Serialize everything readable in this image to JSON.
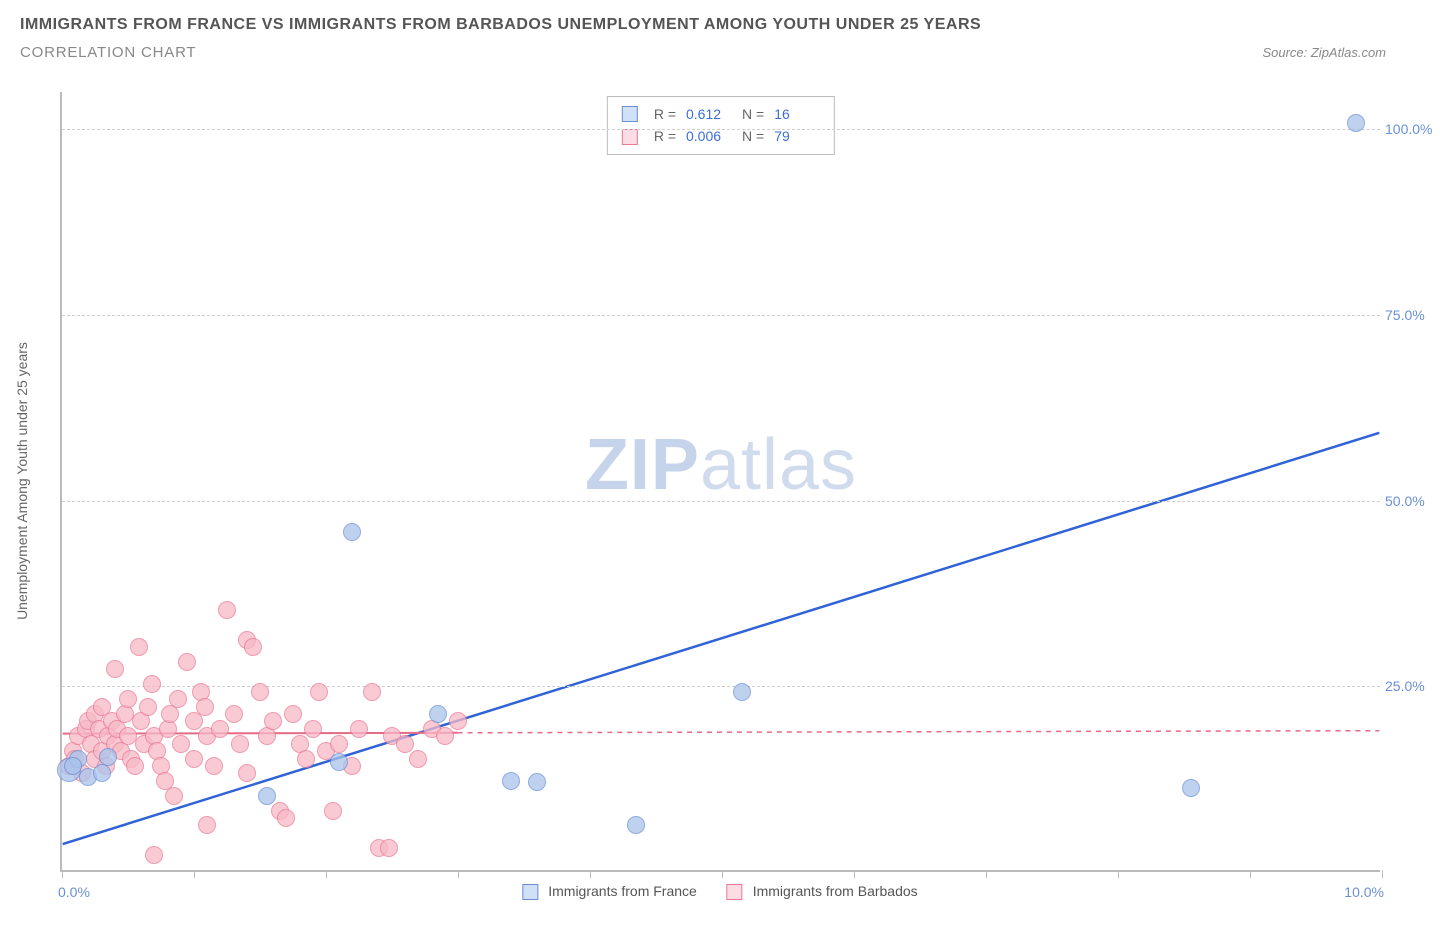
{
  "header": {
    "title": "IMMIGRANTS FROM FRANCE VS IMMIGRANTS FROM BARBADOS UNEMPLOYMENT AMONG YOUTH UNDER 25 YEARS",
    "subtitle": "CORRELATION CHART",
    "source_text": "Source: ZipAtlas.com"
  },
  "watermark": {
    "prefix": "ZIP",
    "suffix": "atlas"
  },
  "chart": {
    "type": "scatter",
    "background_color": "#ffffff",
    "grid_color": "#d0d0d0",
    "axis_color": "#bbbbbb",
    "tick_label_color": "#6b8fd4",
    "ylabel": "Unemployment Among Youth under 25 years",
    "ylabel_fontsize": 14,
    "xlim": [
      0,
      10
    ],
    "ylim": [
      0,
      105
    ],
    "ytick_positions": [
      25,
      50,
      75,
      100
    ],
    "ytick_labels": [
      "25.0%",
      "50.0%",
      "75.0%",
      "100.0%"
    ],
    "xtick_positions": [
      0,
      1,
      2,
      3,
      4,
      5,
      6,
      7,
      8,
      9,
      10
    ],
    "xtick_label_left": "0.0%",
    "xtick_label_right": "10.0%",
    "series": [
      {
        "id": "france",
        "label": "Immigrants from France",
        "marker_fill": "#a9c4ec",
        "marker_stroke": "#6b8fd4",
        "marker_opacity": 0.75,
        "marker_size": 18,
        "R": "0.612",
        "N": "16",
        "trend": {
          "color": "#2f63d6",
          "width": 2.5,
          "style": "solid",
          "x1": 0,
          "y1": 3.5,
          "x2": 10,
          "y2": 59
        },
        "points": [
          {
            "x": 0.05,
            "y": 13.5,
            "size": 24
          },
          {
            "x": 0.12,
            "y": 15.0
          },
          {
            "x": 0.2,
            "y": 12.5
          },
          {
            "x": 0.35,
            "y": 15.2
          },
          {
            "x": 0.3,
            "y": 13.0
          },
          {
            "x": 1.55,
            "y": 10.0
          },
          {
            "x": 2.1,
            "y": 14.5
          },
          {
            "x": 2.2,
            "y": 45.5
          },
          {
            "x": 2.85,
            "y": 21.0
          },
          {
            "x": 3.4,
            "y": 12.0
          },
          {
            "x": 3.6,
            "y": 11.8
          },
          {
            "x": 4.35,
            "y": 6.0
          },
          {
            "x": 5.15,
            "y": 24.0
          },
          {
            "x": 8.55,
            "y": 11.0
          },
          {
            "x": 9.8,
            "y": 100.5
          },
          {
            "x": 0.08,
            "y": 14.0
          }
        ]
      },
      {
        "id": "barbados",
        "label": "Immigrants from Barbados",
        "marker_fill": "#f7b9c6",
        "marker_stroke": "#ea7a95",
        "marker_opacity": 0.75,
        "marker_size": 18,
        "R": "0.006",
        "N": "79",
        "trend": {
          "color": "#e46a87",
          "width": 2,
          "style": "solid_then_dashed",
          "x1": 0,
          "y1": 18.4,
          "x2": 10,
          "y2": 18.8,
          "solid_until_x": 3.0
        },
        "points": [
          {
            "x": 0.05,
            "y": 14
          },
          {
            "x": 0.08,
            "y": 16
          },
          {
            "x": 0.1,
            "y": 15
          },
          {
            "x": 0.12,
            "y": 18
          },
          {
            "x": 0.15,
            "y": 13
          },
          {
            "x": 0.18,
            "y": 19
          },
          {
            "x": 0.2,
            "y": 20
          },
          {
            "x": 0.22,
            "y": 17
          },
          {
            "x": 0.25,
            "y": 15
          },
          {
            "x": 0.25,
            "y": 21
          },
          {
            "x": 0.28,
            "y": 19
          },
          {
            "x": 0.3,
            "y": 22
          },
          {
            "x": 0.3,
            "y": 16
          },
          {
            "x": 0.33,
            "y": 14
          },
          {
            "x": 0.35,
            "y": 18
          },
          {
            "x": 0.38,
            "y": 20
          },
          {
            "x": 0.4,
            "y": 27
          },
          {
            "x": 0.4,
            "y": 17
          },
          {
            "x": 0.42,
            "y": 19
          },
          {
            "x": 0.45,
            "y": 16
          },
          {
            "x": 0.48,
            "y": 21
          },
          {
            "x": 0.5,
            "y": 23
          },
          {
            "x": 0.5,
            "y": 18
          },
          {
            "x": 0.52,
            "y": 15
          },
          {
            "x": 0.55,
            "y": 14
          },
          {
            "x": 0.58,
            "y": 30
          },
          {
            "x": 0.6,
            "y": 20
          },
          {
            "x": 0.62,
            "y": 17
          },
          {
            "x": 0.65,
            "y": 22
          },
          {
            "x": 0.68,
            "y": 25
          },
          {
            "x": 0.7,
            "y": 18
          },
          {
            "x": 0.72,
            "y": 16
          },
          {
            "x": 0.75,
            "y": 14
          },
          {
            "x": 0.78,
            "y": 12
          },
          {
            "x": 0.8,
            "y": 19
          },
          {
            "x": 0.82,
            "y": 21
          },
          {
            "x": 0.85,
            "y": 10
          },
          {
            "x": 0.88,
            "y": 23
          },
          {
            "x": 0.9,
            "y": 17
          },
          {
            "x": 0.95,
            "y": 28
          },
          {
            "x": 1.0,
            "y": 15
          },
          {
            "x": 1.0,
            "y": 20
          },
          {
            "x": 1.05,
            "y": 24
          },
          {
            "x": 1.08,
            "y": 22
          },
          {
            "x": 1.1,
            "y": 18
          },
          {
            "x": 1.1,
            "y": 6
          },
          {
            "x": 1.15,
            "y": 14
          },
          {
            "x": 1.2,
            "y": 19
          },
          {
            "x": 1.25,
            "y": 35
          },
          {
            "x": 1.3,
            "y": 21
          },
          {
            "x": 1.35,
            "y": 17
          },
          {
            "x": 1.4,
            "y": 31
          },
          {
            "x": 1.4,
            "y": 13
          },
          {
            "x": 1.45,
            "y": 30
          },
          {
            "x": 1.5,
            "y": 24
          },
          {
            "x": 1.55,
            "y": 18
          },
          {
            "x": 1.6,
            "y": 20
          },
          {
            "x": 1.65,
            "y": 8
          },
          {
            "x": 1.7,
            "y": 7
          },
          {
            "x": 1.75,
            "y": 21
          },
          {
            "x": 1.8,
            "y": 17
          },
          {
            "x": 1.85,
            "y": 15
          },
          {
            "x": 1.9,
            "y": 19
          },
          {
            "x": 1.95,
            "y": 24
          },
          {
            "x": 2.0,
            "y": 16
          },
          {
            "x": 2.05,
            "y": 8
          },
          {
            "x": 2.1,
            "y": 17
          },
          {
            "x": 2.2,
            "y": 14
          },
          {
            "x": 2.25,
            "y": 19
          },
          {
            "x": 2.35,
            "y": 24
          },
          {
            "x": 2.4,
            "y": 3
          },
          {
            "x": 2.48,
            "y": 3
          },
          {
            "x": 2.5,
            "y": 18
          },
          {
            "x": 2.6,
            "y": 17
          },
          {
            "x": 2.7,
            "y": 15
          },
          {
            "x": 2.8,
            "y": 19
          },
          {
            "x": 2.9,
            "y": 18
          },
          {
            "x": 3.0,
            "y": 20
          },
          {
            "x": 0.7,
            "y": 2
          }
        ]
      }
    ],
    "top_legend": {
      "swatch_border_france": "#6b8fd4",
      "swatch_fill_france": "#cfe0f7",
      "swatch_border_barbados": "#ea7a95",
      "swatch_fill_barbados": "#fcdde4",
      "label_R": "R =",
      "label_N": "N ="
    },
    "bottom_legend": {
      "france_label": "Immigrants from France",
      "barbados_label": "Immigrants from Barbados"
    }
  }
}
